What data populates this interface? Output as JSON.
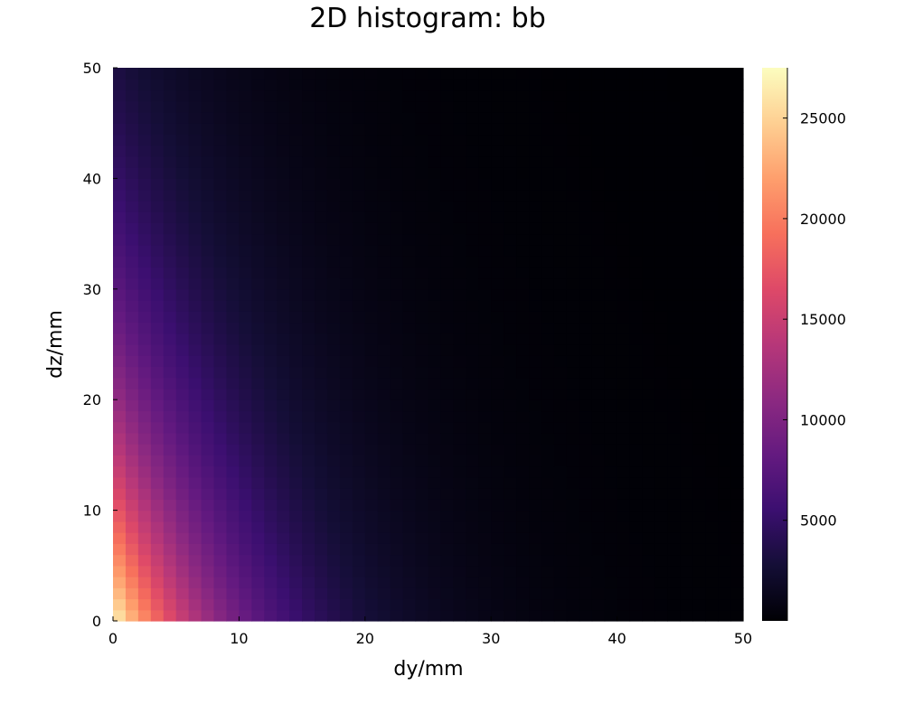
{
  "chart_data": {
    "type": "heatmap",
    "title": "2D histogram: bb",
    "xlabel": "dy/mm",
    "ylabel": "dz/mm",
    "xlim": [
      0,
      50
    ],
    "ylim": [
      0,
      50
    ],
    "x_ticks": [
      "0",
      "10",
      "20",
      "30",
      "40",
      "50"
    ],
    "y_ticks": [
      "0",
      "10",
      "20",
      "30",
      "40",
      "50"
    ],
    "nx": 50,
    "ny": 50,
    "bin_width": 1,
    "model": {
      "description": "counts per 1mm x 1mm bin, approx value(dy,dz) = peak * exp(-dy/y_scale) * exp(-dz/z_scale)",
      "peak": 27500,
      "y_scale": 9.0,
      "z_scale": 24.0
    },
    "colorbar": {
      "colormap": "magma",
      "min": 0,
      "max": 27500,
      "ticks": [
        "5000",
        "10000",
        "15000",
        "20000",
        "25000"
      ],
      "tick_values": [
        5000,
        10000,
        15000,
        20000,
        25000
      ]
    }
  }
}
